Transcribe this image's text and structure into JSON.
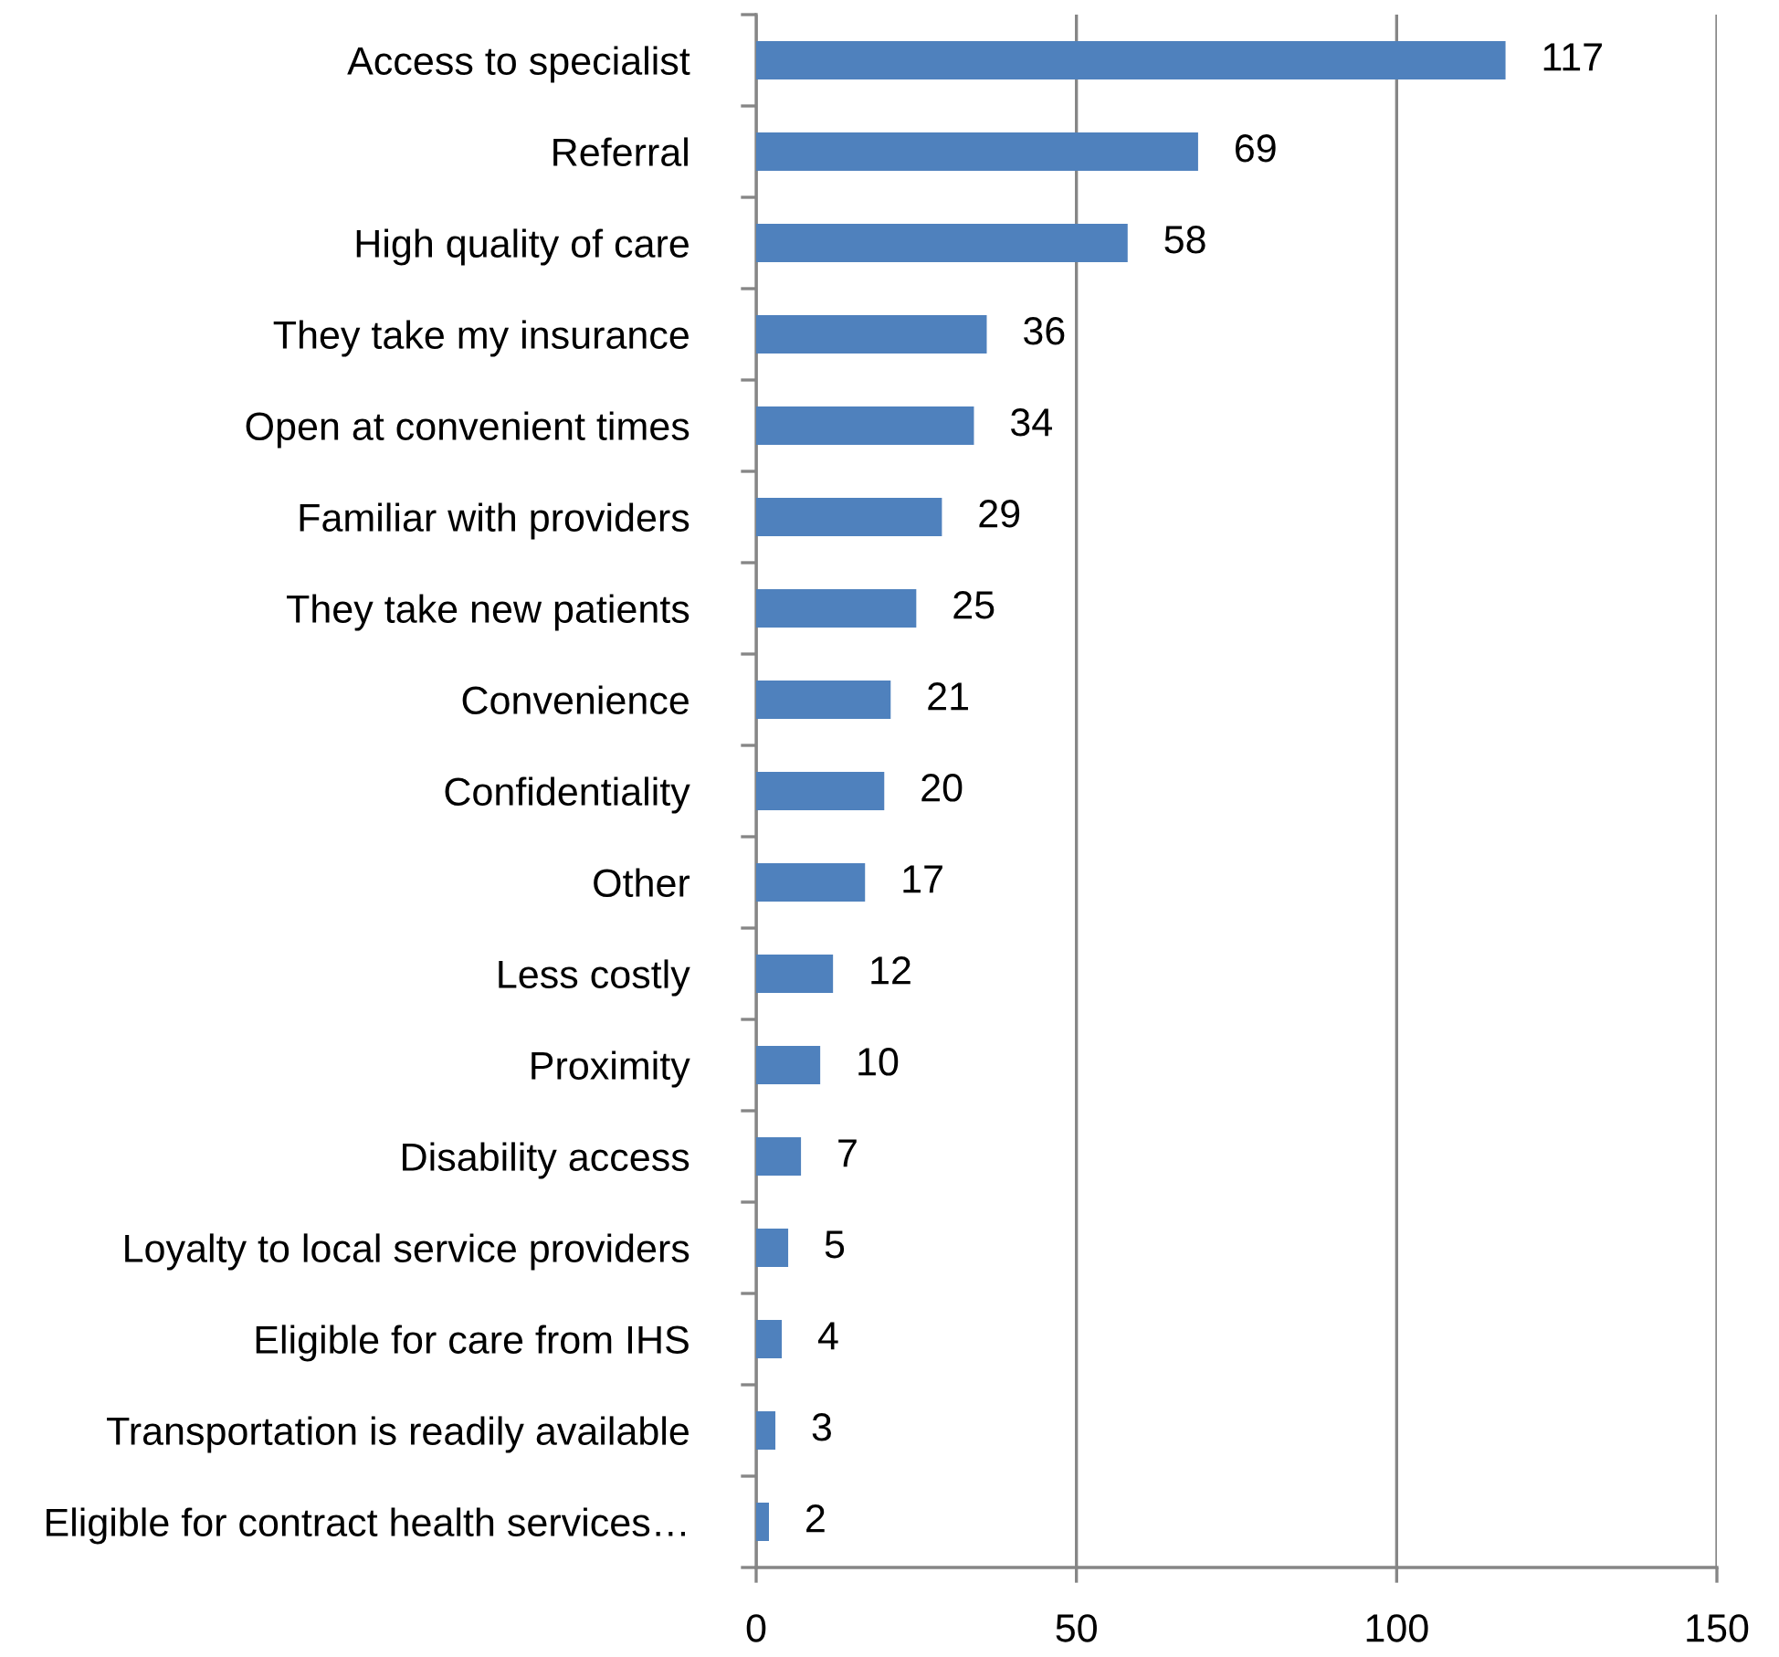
{
  "chart_data": {
    "type": "bar",
    "orientation": "horizontal",
    "categories": [
      "Access to specialist",
      "Referral",
      "High quality of care",
      "They take my insurance",
      "Open at convenient times",
      "Familiar with providers",
      "They take new patients",
      "Convenience",
      "Confidentiality",
      "Other",
      "Less costly",
      "Proximity",
      "Disability access",
      "Loyalty to local service providers",
      "Eligible for care from IHS",
      "Transportation is readily available",
      "Eligible for contract health services…"
    ],
    "values": [
      117,
      69,
      58,
      36,
      34,
      29,
      25,
      21,
      20,
      17,
      12,
      10,
      7,
      5,
      4,
      3,
      2
    ],
    "color": "#4f81bd",
    "xlim": [
      0,
      150
    ],
    "xticks": [
      0,
      50,
      100,
      150
    ],
    "grid": "x",
    "data_labels": true
  }
}
